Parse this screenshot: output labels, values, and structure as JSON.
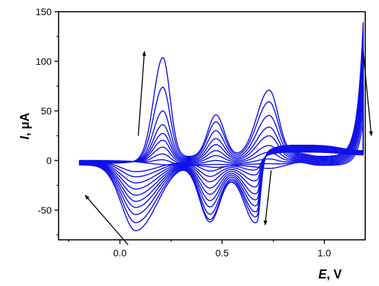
{
  "chart_data": {
    "type": "line",
    "title": "",
    "xlabel": {
      "symbol": "E",
      "unit": ", V"
    },
    "ylabel": {
      "symbol": "I",
      "unit": ", μA"
    },
    "xlim": [
      -0.3,
      1.2
    ],
    "ylim": [
      -80,
      150
    ],
    "xticks": [
      0.0,
      0.5,
      1.0
    ],
    "xtick_labels": [
      "0.0",
      "0.5",
      "1.0"
    ],
    "yticks": [
      -50,
      0,
      50,
      100,
      150
    ],
    "ytick_labels": [
      "-50",
      "0",
      "50",
      "100",
      "150"
    ],
    "grid": false,
    "legend": "none",
    "line_color": "#1010e8",
    "arrow_color": "#000000",
    "potential_window": [
      -0.2,
      1.19
    ],
    "n_cycles": 10,
    "peaks": {
      "anodic_1": {
        "E": 0.21,
        "I": [
          4,
          9,
          15,
          22,
          29,
          36,
          45,
          59,
          83,
          113
        ]
      },
      "anodic_2": {
        "E": 0.47,
        "I": [
          3,
          6,
          10,
          15,
          20,
          26,
          32,
          40,
          49,
          56
        ]
      },
      "anodic_3": {
        "E": 0.73,
        "I": [
          3,
          8,
          13,
          20,
          27,
          37,
          46,
          58,
          72,
          84
        ]
      },
      "cathodic_1": {
        "E": 0.08,
        "I": [
          -10,
          -15,
          -21,
          -27,
          -33,
          -39,
          -45,
          -52,
          -60,
          -68
        ]
      },
      "cathodic_2": {
        "E": 0.44,
        "I": [
          -9,
          -14,
          -19,
          -25,
          -31,
          -37,
          -43,
          -50,
          -55,
          -57
        ]
      },
      "cathodic_3": {
        "E": 0.67,
        "I": [
          -10,
          -15,
          -21,
          -27,
          -34,
          -40,
          -46,
          -52,
          -57,
          -63
        ]
      }
    },
    "arrows": [
      {
        "from": [
          0.09,
          25
        ],
        "to": [
          0.12,
          110
        ]
      },
      {
        "from": [
          0.04,
          -85
        ],
        "to": [
          -0.17,
          -35
        ]
      },
      {
        "from": [
          0.74,
          -10
        ],
        "to": [
          0.71,
          -65
        ]
      },
      {
        "from": [
          1.19,
          110
        ],
        "to": [
          1.23,
          25
        ]
      }
    ]
  }
}
